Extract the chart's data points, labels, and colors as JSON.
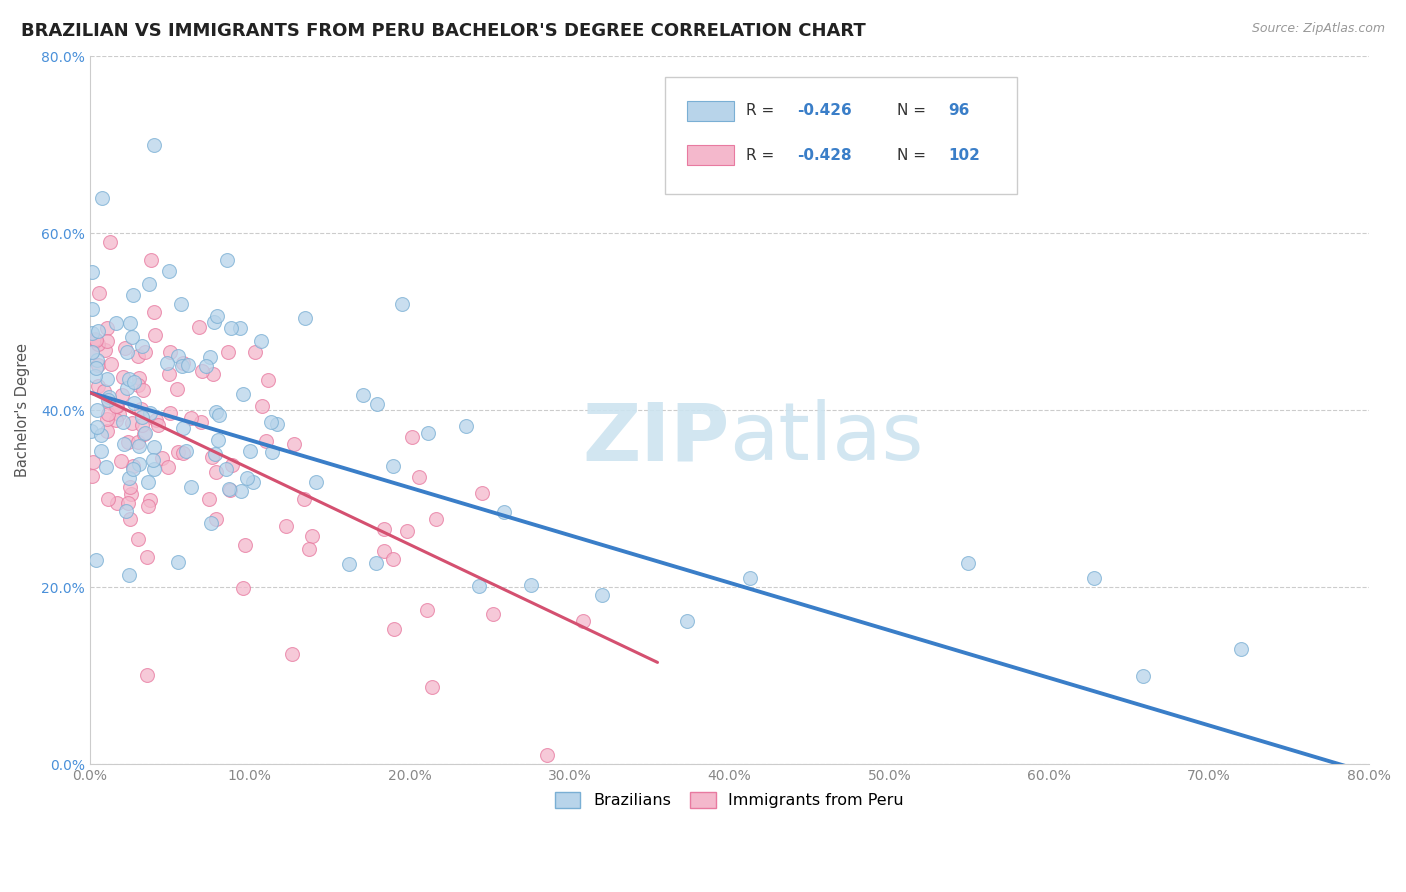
{
  "title": "BRAZILIAN VS IMMIGRANTS FROM PERU BACHELOR'S DEGREE CORRELATION CHART",
  "source": "Source: ZipAtlas.com",
  "ylabel": "Bachelor's Degree",
  "xlim": [
    0.0,
    0.8
  ],
  "ylim": [
    0.0,
    0.8
  ],
  "watermark_zip": "ZIP",
  "watermark_atlas": "atlas",
  "legend_r1": "R = -0.426",
  "legend_n1": "96",
  "legend_r2": "R = -0.428",
  "legend_n2": "102",
  "blue_scatter_color": "#b8d4ea",
  "blue_edge_color": "#7aafd4",
  "pink_scatter_color": "#f4b8cc",
  "pink_edge_color": "#e87aa0",
  "blue_line_color": "#3a7ec8",
  "pink_line_color": "#d45070",
  "blue_line_x": [
    0.0,
    0.8
  ],
  "blue_line_y": [
    0.42,
    -0.01
  ],
  "pink_line_x": [
    0.0,
    0.355
  ],
  "pink_line_y": [
    0.42,
    0.115
  ],
  "title_fontsize": 13,
  "source_fontsize": 9,
  "watermark_fontsize": 58,
  "scatter_size": 100,
  "scatter_alpha": 0.75,
  "xtick_vals": [
    0.0,
    0.1,
    0.2,
    0.3,
    0.4,
    0.5,
    0.6,
    0.7,
    0.8
  ],
  "ytick_vals": [
    0.0,
    0.2,
    0.4,
    0.6,
    0.8
  ],
  "grid_color": "#cccccc",
  "grid_style": "--",
  "spine_color": "#cccccc",
  "ytick_color": "#4a90d9",
  "xtick_color": "#888888"
}
